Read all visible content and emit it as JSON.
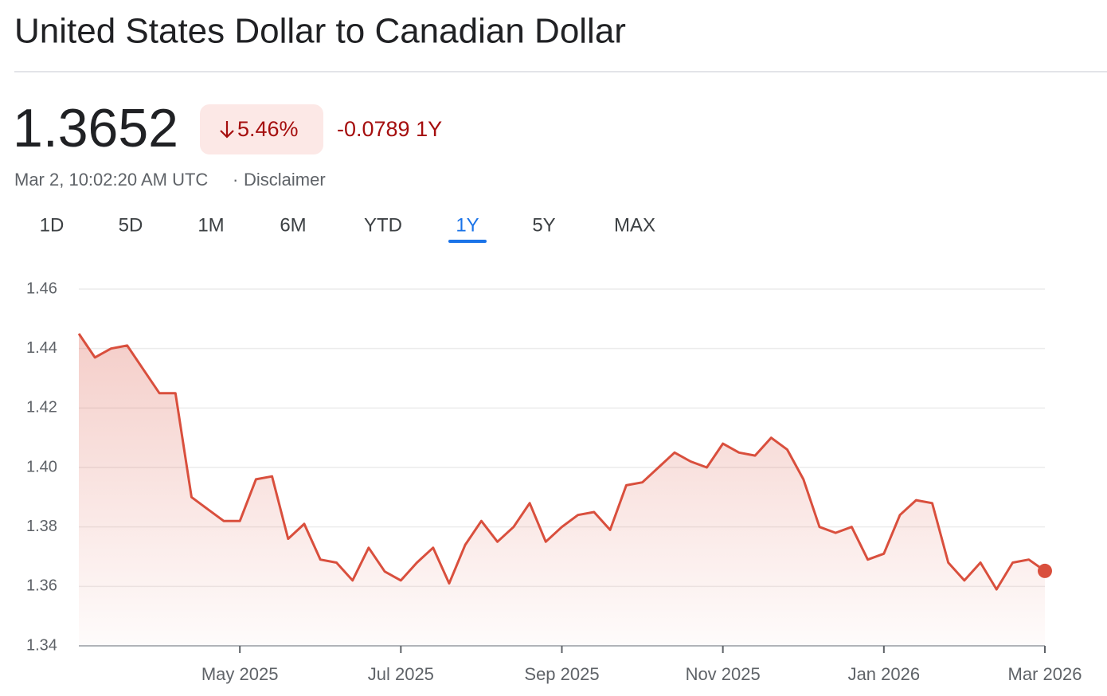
{
  "header": {
    "title": "United States Dollar to Canadian Dollar",
    "price": "1.3652",
    "change_percent": "5.46%",
    "change": "-0.0789 1Y",
    "timestamp": "Mar 2, 10:02:20 AM UTC",
    "separator": "·",
    "disclaimer": "Disclaimer"
  },
  "tabs": {
    "items": [
      "1D",
      "5D",
      "1M",
      "6M",
      "YTD",
      "1Y",
      "5Y",
      "MAX"
    ],
    "active": 5
  },
  "chart_data": {
    "type": "line",
    "categories": [
      null,
      null,
      null,
      null,
      null,
      null,
      null,
      null,
      null,
      null,
      "May 2025",
      null,
      null,
      null,
      null,
      null,
      null,
      null,
      null,
      null,
      "Jul 2025",
      null,
      null,
      null,
      null,
      null,
      null,
      null,
      null,
      null,
      "Sep 2025",
      null,
      null,
      null,
      null,
      null,
      null,
      null,
      null,
      null,
      "Nov 2025",
      null,
      null,
      null,
      null,
      null,
      null,
      null,
      null,
      null,
      "Jan 2026",
      null,
      null,
      null,
      null,
      null,
      null,
      null,
      null,
      null,
      "Mar 2026"
    ],
    "series": [
      {
        "name": "USD/CAD",
        "color": "#d94f3d",
        "values": [
          1.445,
          1.437,
          1.44,
          1.441,
          1.433,
          1.425,
          1.425,
          1.39,
          1.386,
          1.382,
          1.382,
          1.396,
          1.397,
          1.376,
          1.381,
          1.369,
          1.368,
          1.362,
          1.373,
          1.365,
          1.362,
          1.368,
          1.373,
          1.361,
          1.374,
          1.382,
          1.375,
          1.38,
          1.388,
          1.375,
          1.38,
          1.384,
          1.385,
          1.379,
          1.394,
          1.395,
          1.4,
          1.405,
          1.402,
          1.4,
          1.408,
          1.405,
          1.404,
          1.41,
          1.406,
          1.396,
          1.38,
          1.378,
          1.38,
          1.369,
          1.371,
          1.384,
          1.389,
          1.388,
          1.368,
          1.362,
          1.368,
          1.359,
          1.368,
          1.369,
          1.3652
        ]
      }
    ],
    "ylim": [
      1.34,
      1.46
    ],
    "yticks": [
      1.34,
      1.36,
      1.38,
      {
        "value": 1.4,
        "label": "1.40"
      },
      1.42,
      1.44,
      1.46
    ],
    "grid": true
  }
}
